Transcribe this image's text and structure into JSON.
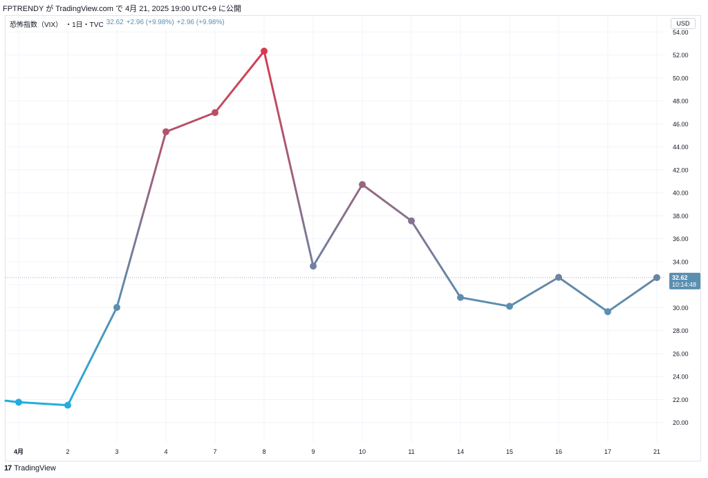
{
  "header": {
    "published": "FPTRENDY が TradingView.com で 4月 21, 2025 19:00 UTC+9 に公開"
  },
  "legend": {
    "symbol": "恐怖指数（VIX）",
    "interval": "・1日・TVC",
    "last": "32.62",
    "change": "+2.96 (+9.98%)",
    "change2": "+2.96 (+9.98%)"
  },
  "currency": "USD",
  "price_label": {
    "value": "32.62",
    "countdown": "10:14:48"
  },
  "footer": {
    "brand": "TradingView",
    "icon": "tradingview-logo-icon"
  },
  "colors": {
    "start": "#1eaee0",
    "mid": "#5b8fb0",
    "peak": "#d9394d",
    "label_bg": "#5b8fb0",
    "grid": "#f0f3fa"
  },
  "chart_data": {
    "type": "line",
    "x": [
      "4月",
      "2",
      "3",
      "4",
      "7",
      "8",
      "9",
      "10",
      "11",
      "14",
      "15",
      "16",
      "17",
      "21"
    ],
    "values": [
      21.77,
      21.51,
      30.02,
      45.31,
      46.98,
      52.33,
      33.62,
      40.72,
      37.56,
      30.89,
      30.12,
      32.64,
      29.65,
      32.62
    ],
    "lead_in_value": 21.9,
    "y_ticks": [
      20,
      22,
      24,
      26,
      28,
      30,
      32,
      34,
      36,
      38,
      40,
      42,
      44,
      46,
      48,
      50,
      52,
      54
    ],
    "ylim": [
      18.3,
      55.4
    ],
    "title": "",
    "xlabel": "",
    "ylabel": "",
    "grid": true,
    "last_price_line": 32.62
  }
}
